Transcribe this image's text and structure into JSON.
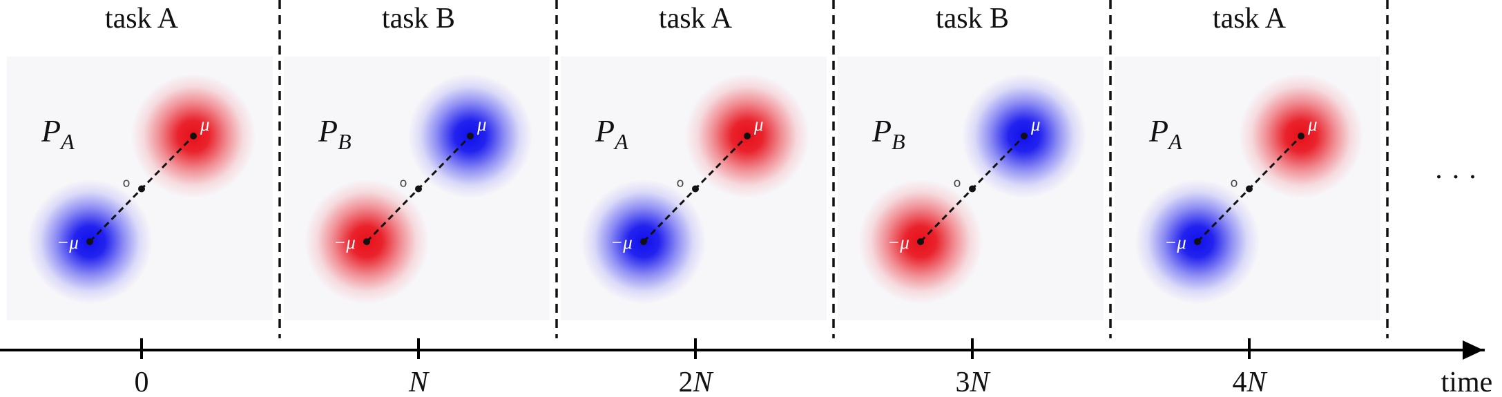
{
  "panels": [
    {
      "task": "task A",
      "dist_letter": "P",
      "dist_sub": "A",
      "origin_label": "o",
      "mu_label": "μ",
      "neg_mu_label": "−μ",
      "mu_color": "red",
      "neg_mu_color": "blue"
    },
    {
      "task": "task B",
      "dist_letter": "P",
      "dist_sub": "B",
      "origin_label": "o",
      "mu_label": "μ",
      "neg_mu_label": "−μ",
      "mu_color": "blue",
      "neg_mu_color": "red"
    },
    {
      "task": "task A",
      "dist_letter": "P",
      "dist_sub": "A",
      "origin_label": "o",
      "mu_label": "μ",
      "neg_mu_label": "−μ",
      "mu_color": "red",
      "neg_mu_color": "blue"
    },
    {
      "task": "task B",
      "dist_letter": "P",
      "dist_sub": "B",
      "origin_label": "o",
      "mu_label": "μ",
      "neg_mu_label": "−μ",
      "mu_color": "blue",
      "neg_mu_color": "red"
    },
    {
      "task": "task A",
      "dist_letter": "P",
      "dist_sub": "A",
      "origin_label": "o",
      "mu_label": "μ",
      "neg_mu_label": "−μ",
      "mu_color": "red",
      "neg_mu_color": "blue"
    }
  ],
  "colors": {
    "red": "#e8101a",
    "blue": "#1010ee"
  },
  "ellipsis": "· · ·",
  "axis": {
    "ticks": [
      {
        "coef": "",
        "var": "",
        "text": "0"
      },
      {
        "coef": "",
        "var": "N",
        "text": ""
      },
      {
        "coef": "2",
        "var": "N",
        "text": ""
      },
      {
        "coef": "3",
        "var": "N",
        "text": ""
      },
      {
        "coef": "4",
        "var": "N",
        "text": ""
      }
    ],
    "label": "time"
  }
}
